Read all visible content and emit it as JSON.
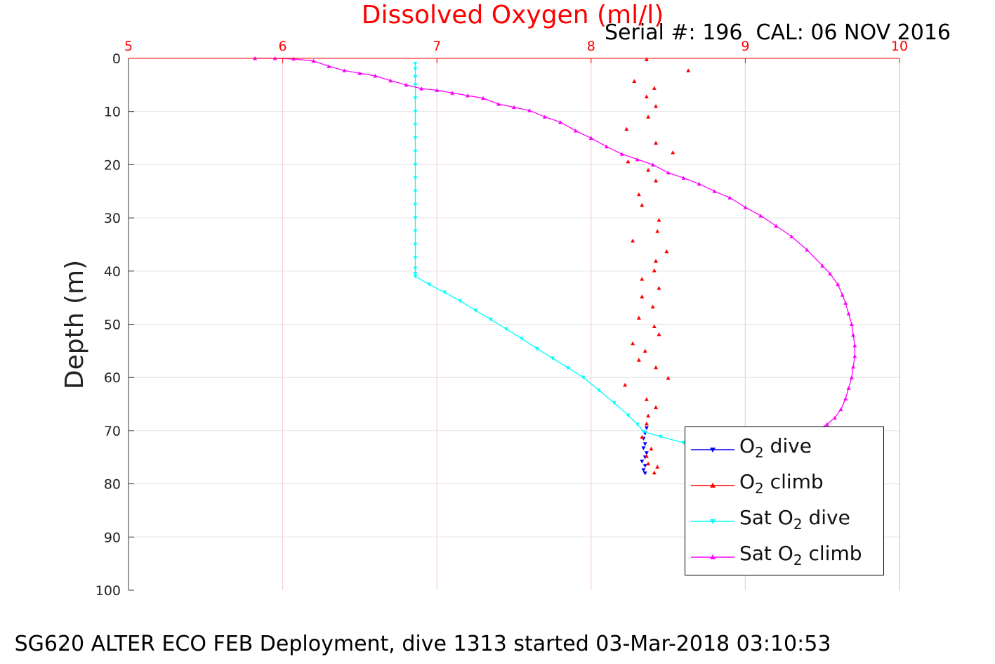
{
  "chart_data": {
    "type": "scatter",
    "title": "Dissolved Oxygen (ml/l)",
    "subtitle": "Serial #: 196  CAL: 06 NOV 2016",
    "caption": "SG620 ALTER ECO FEB Deployment, dive 1313 started 03-Mar-2018 03:10:53",
    "xlabel": "",
    "ylabel": "Depth (m)",
    "xlim": [
      5,
      10
    ],
    "ylim": [
      0,
      100
    ],
    "y_reversed": true,
    "x_axis_position": "top",
    "xticks": [
      "5",
      "6",
      "7",
      "8",
      "9",
      "10"
    ],
    "yticks": [
      "0",
      "10",
      "20",
      "30",
      "40",
      "50",
      "60",
      "70",
      "80",
      "90",
      "100"
    ],
    "grid": true,
    "legend_position": "bottom-right",
    "colors": {
      "title": "#ff0000",
      "xtick": "#ff0000",
      "grid_x": "#f5c6cf",
      "grid_y": "#e0e0e0"
    },
    "series": [
      {
        "name": "O2 dive",
        "label_main": "O",
        "label_sub": "2",
        "label_rest": " dive",
        "color": "#0000ff",
        "marker": "triangle-down",
        "line": false,
        "points": [
          [
            8.36,
            69.5
          ],
          [
            8.35,
            70.5
          ],
          [
            8.34,
            71.5
          ],
          [
            8.35,
            72.5
          ],
          [
            8.34,
            73.3
          ],
          [
            8.36,
            74.2
          ],
          [
            8.35,
            75.0
          ],
          [
            8.33,
            75.8
          ],
          [
            8.35,
            76.6
          ],
          [
            8.34,
            77.4
          ],
          [
            8.35,
            78.0
          ]
        ]
      },
      {
        "name": "O2 climb",
        "label_main": "O",
        "label_sub": "2",
        "label_rest": " climb",
        "color": "#ff0000",
        "marker": "triangle-up",
        "line": false,
        "points": [
          [
            8.36,
            0.2
          ],
          [
            8.63,
            2.3
          ],
          [
            8.28,
            4.3
          ],
          [
            8.41,
            5.6
          ],
          [
            8.36,
            7.2
          ],
          [
            8.42,
            9.0
          ],
          [
            8.37,
            11.0
          ],
          [
            8.23,
            13.3
          ],
          [
            8.42,
            15.9
          ],
          [
            8.53,
            17.7
          ],
          [
            8.24,
            19.4
          ],
          [
            8.37,
            21.0
          ],
          [
            8.42,
            23.0
          ],
          [
            8.31,
            25.6
          ],
          [
            8.33,
            27.6
          ],
          [
            8.44,
            30.4
          ],
          [
            8.43,
            32.5
          ],
          [
            8.27,
            34.3
          ],
          [
            8.49,
            36.3
          ],
          [
            8.42,
            38.1
          ],
          [
            8.41,
            39.9
          ],
          [
            8.33,
            41.5
          ],
          [
            8.44,
            43.2
          ],
          [
            8.33,
            44.8
          ],
          [
            8.4,
            46.7
          ],
          [
            8.31,
            48.8
          ],
          [
            8.41,
            50.4
          ],
          [
            8.44,
            51.9
          ],
          [
            8.27,
            53.6
          ],
          [
            8.35,
            55.0
          ],
          [
            8.31,
            56.7
          ],
          [
            8.42,
            58.1
          ],
          [
            8.5,
            60.1
          ],
          [
            8.22,
            61.4
          ],
          [
            8.36,
            64.1
          ],
          [
            8.42,
            65.6
          ],
          [
            8.37,
            67.2
          ],
          [
            8.36,
            68.7
          ],
          [
            8.33,
            71.2
          ],
          [
            8.39,
            73.4
          ],
          [
            8.36,
            74.8
          ],
          [
            8.37,
            76.2
          ],
          [
            8.43,
            76.8
          ],
          [
            8.41,
            77.9
          ]
        ]
      },
      {
        "name": "Sat O2 dive",
        "label_main": "Sat O",
        "label_sub": "2",
        "label_rest": " dive",
        "color": "#00ffff",
        "marker": "triangle-down",
        "line": true,
        "points": [
          [
            6.86,
            1.0
          ],
          [
            6.86,
            2.0
          ],
          [
            6.86,
            3.5
          ],
          [
            6.86,
            5.0
          ],
          [
            6.86,
            7.5
          ],
          [
            6.86,
            10.0
          ],
          [
            6.86,
            12.5
          ],
          [
            6.86,
            15.0
          ],
          [
            6.86,
            17.5
          ],
          [
            6.86,
            20.0
          ],
          [
            6.86,
            22.5
          ],
          [
            6.86,
            25.0
          ],
          [
            6.86,
            27.5
          ],
          [
            6.86,
            30.0
          ],
          [
            6.86,
            32.5
          ],
          [
            6.86,
            35.0
          ],
          [
            6.86,
            37.5
          ],
          [
            6.86,
            39.5
          ],
          [
            6.86,
            40.5
          ],
          [
            6.86,
            41.0
          ],
          [
            6.95,
            42.5
          ],
          [
            7.05,
            44.0
          ],
          [
            7.15,
            45.6
          ],
          [
            7.25,
            47.4
          ],
          [
            7.35,
            49.1
          ],
          [
            7.45,
            50.9
          ],
          [
            7.55,
            52.7
          ],
          [
            7.65,
            54.6
          ],
          [
            7.75,
            56.4
          ],
          [
            7.85,
            58.2
          ],
          [
            7.95,
            60.0
          ],
          [
            8.05,
            62.4
          ],
          [
            8.15,
            64.8
          ],
          [
            8.24,
            67.1
          ],
          [
            8.3,
            68.8
          ],
          [
            8.34,
            70.2
          ],
          [
            8.45,
            71.1
          ],
          [
            8.6,
            72.3
          ],
          [
            8.75,
            73.4
          ],
          [
            8.85,
            74.2
          ]
        ]
      },
      {
        "name": "Sat O2 climb",
        "label_main": "Sat O",
        "label_sub": "2",
        "label_rest": " climb",
        "color": "#ff00ff",
        "marker": "triangle-up",
        "line": true,
        "points": [
          [
            5.82,
            0.0
          ],
          [
            5.95,
            0.0
          ],
          [
            6.07,
            0.1
          ],
          [
            6.2,
            0.5
          ],
          [
            6.3,
            1.5
          ],
          [
            6.4,
            2.3
          ],
          [
            6.5,
            2.8
          ],
          [
            6.6,
            3.3
          ],
          [
            6.7,
            4.2
          ],
          [
            6.8,
            5.0
          ],
          [
            6.9,
            5.7
          ],
          [
            7.0,
            6.0
          ],
          [
            7.1,
            6.5
          ],
          [
            7.2,
            7.0
          ],
          [
            7.3,
            7.5
          ],
          [
            7.4,
            8.6
          ],
          [
            7.5,
            9.2
          ],
          [
            7.6,
            9.8
          ],
          [
            7.7,
            11.0
          ],
          [
            7.8,
            12.0
          ],
          [
            7.9,
            13.6
          ],
          [
            8.0,
            15.0
          ],
          [
            8.1,
            16.6
          ],
          [
            8.2,
            18.0
          ],
          [
            8.3,
            19.0
          ],
          [
            8.4,
            20.0
          ],
          [
            8.5,
            21.5
          ],
          [
            8.6,
            22.5
          ],
          [
            8.7,
            23.6
          ],
          [
            8.8,
            25.0
          ],
          [
            8.9,
            26.2
          ],
          [
            9.0,
            28.0
          ],
          [
            9.1,
            29.6
          ],
          [
            9.2,
            31.5
          ],
          [
            9.3,
            33.5
          ],
          [
            9.4,
            36.0
          ],
          [
            9.5,
            39.0
          ],
          [
            9.55,
            40.5
          ],
          [
            9.6,
            42.5
          ],
          [
            9.63,
            44.5
          ],
          [
            9.65,
            46.0
          ],
          [
            9.67,
            48.0
          ],
          [
            9.69,
            50.0
          ],
          [
            9.7,
            52.0
          ],
          [
            9.71,
            54.0
          ],
          [
            9.71,
            56.0
          ],
          [
            9.7,
            58.0
          ],
          [
            9.69,
            60.0
          ],
          [
            9.67,
            62.0
          ],
          [
            9.65,
            64.0
          ],
          [
            9.62,
            66.0
          ],
          [
            9.58,
            67.6
          ],
          [
            9.53,
            68.8
          ],
          [
            9.48,
            69.8
          ],
          [
            9.45,
            70.5
          ]
        ]
      }
    ]
  }
}
